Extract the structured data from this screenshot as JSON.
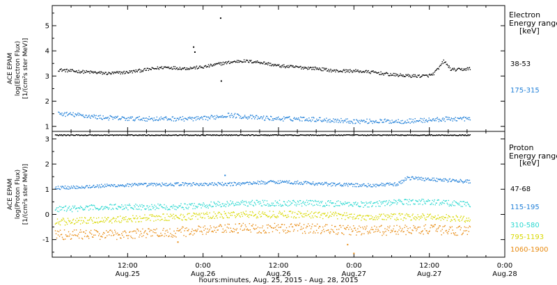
{
  "chart_data": {
    "type": "scatter",
    "xlabel": "hours:minutes, Aug. 25, 2015 - Aug. 28, 2015",
    "x_ticks": [
      {
        "x": 12,
        "time": "12:00",
        "day": "Aug.25"
      },
      {
        "x": 24,
        "time": "0:00",
        "day": "Aug.26"
      },
      {
        "x": 36,
        "time": "12:00",
        "day": "Aug.26"
      },
      {
        "x": 48,
        "time": "0:00",
        "day": "Aug.27"
      },
      {
        "x": 60,
        "time": "12:00",
        "day": "Aug.27"
      },
      {
        "x": 72,
        "time": "0:00",
        "day": "Aug.28"
      }
    ],
    "xlim": [
      0,
      72
    ],
    "grid": false,
    "panels": [
      {
        "id": "electron",
        "ylabel_lines": [
          "ACE EPAM",
          "log(Electron Flux)",
          "[1/(cm²s ster MeV)]"
        ],
        "ylim": [
          0.8,
          5.8
        ],
        "yticks": [
          1,
          2,
          3,
          4,
          5
        ],
        "legend": {
          "title_lines": [
            "Electron",
            "Energy ranges"
          ],
          "unit": "[keV]",
          "entries": [
            {
              "label": "38-53",
              "color": "#000000"
            },
            {
              "label": "175-315",
              "color": "#1f7fd8"
            }
          ]
        },
        "series": [
          {
            "label": "38-53",
            "color": "#000000",
            "x": [
              1,
              3,
              6,
              9,
              12,
              15,
              18,
              21,
              24,
              27,
              30,
              33,
              36,
              39,
              42,
              45,
              48,
              51,
              54,
              57,
              58.5,
              59.5,
              60.5,
              61.5,
              62.3,
              63.5,
              65,
              66.5
            ],
            "y": [
              3.25,
              3.2,
              3.15,
              3.1,
              3.15,
              3.25,
              3.35,
              3.3,
              3.35,
              3.5,
              3.6,
              3.55,
              3.4,
              3.35,
              3.3,
              3.2,
              3.2,
              3.15,
              3.05,
              3.0,
              3.0,
              3.0,
              3.05,
              3.3,
              3.6,
              3.25,
              3.25,
              3.3
            ],
            "noise": 0.06,
            "outliers": [
              [
                22.5,
                4.15
              ],
              [
                22.7,
                3.95
              ],
              [
                26.8,
                5.3
              ],
              [
                26.9,
                2.8
              ]
            ]
          },
          {
            "label": "175-315",
            "color": "#1f7fd8",
            "x": [
              1,
              4,
              8,
              12,
              16,
              20,
              24,
              28,
              32,
              36,
              40,
              44,
              48,
              52,
              56,
              60,
              64,
              66.5
            ],
            "y": [
              1.5,
              1.45,
              1.35,
              1.3,
              1.3,
              1.3,
              1.3,
              1.45,
              1.35,
              1.3,
              1.3,
              1.25,
              1.2,
              1.2,
              1.2,
              1.25,
              1.3,
              1.3
            ],
            "noise": 0.09,
            "outliers": []
          }
        ]
      },
      {
        "id": "proton",
        "ylabel_lines": [
          "ACE EPAM",
          "log(Proton Flux)",
          "[1/(cm²s ster MeV)]"
        ],
        "ylim": [
          -1.7,
          3.3
        ],
        "yticks": [
          -1,
          0,
          1,
          2,
          3
        ],
        "legend": {
          "title_lines": [
            "Proton",
            "Energy ranges"
          ],
          "unit": "[keV]",
          "entries": [
            {
              "label": "47-68",
              "color": "#000000"
            },
            {
              "label": "115-195",
              "color": "#1f7fd8"
            },
            {
              "label": "310-580",
              "color": "#2ad8d0"
            },
            {
              "label": "795-1193",
              "color": "#d8d800"
            },
            {
              "label": "1060-1900",
              "color": "#e88a10"
            }
          ]
        },
        "series": [
          {
            "label": "47-68",
            "color": "#000000",
            "x": [
              0.5,
              66.5
            ],
            "y": [
              3.15,
              3.15
            ],
            "noise": 0.02,
            "outliers": []
          },
          {
            "label": "115-195",
            "color": "#1f7fd8",
            "x": [
              0.5,
              10,
              20,
              28,
              36,
              44,
              50,
              55,
              56.5,
              60,
              66.5
            ],
            "y": [
              1.05,
              1.15,
              1.2,
              1.2,
              1.3,
              1.2,
              1.15,
              1.2,
              1.45,
              1.4,
              1.3
            ],
            "noise": 0.07,
            "outliers": [
              [
                27.5,
                1.55
              ]
            ]
          },
          {
            "label": "310-580",
            "color": "#2ad8d0",
            "x": [
              0.5,
              10,
              20,
              30,
              40,
              50,
              56,
              60,
              66.5
            ],
            "y": [
              0.2,
              0.3,
              0.3,
              0.45,
              0.45,
              0.4,
              0.5,
              0.5,
              0.4
            ],
            "noise": 0.12,
            "outliers": []
          },
          {
            "label": "795-1193",
            "color": "#d8d800",
            "x": [
              0.5,
              10,
              20,
              30,
              40,
              50,
              60,
              66.5
            ],
            "y": [
              -0.3,
              -0.2,
              -0.1,
              0.0,
              0.0,
              -0.1,
              -0.1,
              -0.2
            ],
            "noise": 0.14,
            "outliers": []
          },
          {
            "label": "1060-1900",
            "color": "#e88a10",
            "x": [
              0.5,
              10,
              20,
              30,
              40,
              50,
              60,
              66.5
            ],
            "y": [
              -0.8,
              -0.8,
              -0.7,
              -0.55,
              -0.55,
              -0.65,
              -0.6,
              -0.65
            ],
            "noise": 0.2,
            "outliers": [
              [
                47,
                -1.2
              ],
              [
                48,
                -1.55
              ],
              [
                20,
                -1.1
              ]
            ]
          }
        ]
      }
    ]
  }
}
